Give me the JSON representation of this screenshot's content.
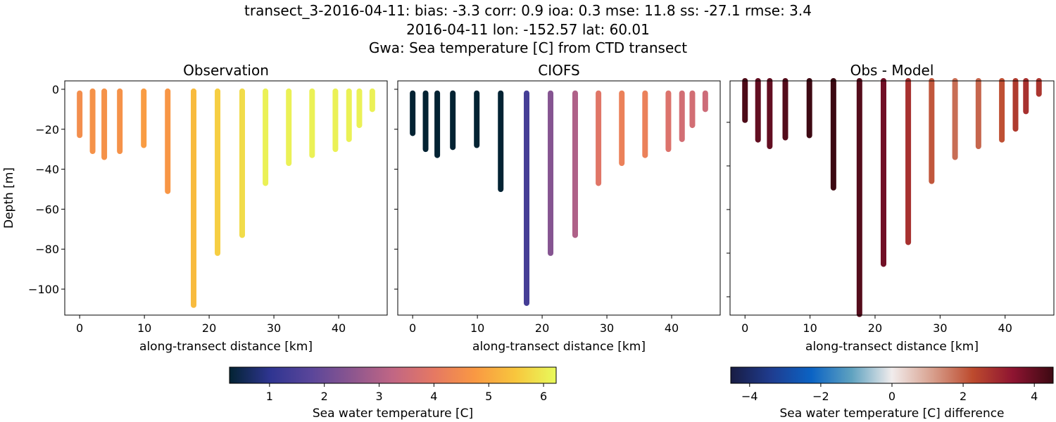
{
  "title_lines": [
    "transect_3-2016-04-11: bias: -3.3  corr: 0.9  ioa: 0.3  mse: 11.8  ss: -27.1  rmse: 3.4",
    "2016-04-11 lon: -152.57 lat: 60.01",
    "Gwa: Sea temperature [C] from CTD transect"
  ],
  "chart_data": [
    {
      "type": "scatter",
      "title": "Observation",
      "xlabel": "along-transect distance [km]",
      "ylabel": "Depth [m]",
      "xlim": [
        -2.3,
        47.5
      ],
      "ylim": [
        -113,
        4.2
      ],
      "xticks": [
        0,
        10,
        20,
        30,
        40
      ],
      "yticks": [
        0,
        -20,
        -40,
        -60,
        -80,
        -100
      ],
      "ytick_labels_shown": true,
      "colormap": "thermal",
      "clim": [
        0.27,
        6.23
      ],
      "stations": [
        {
          "x": 0.0,
          "top": -2,
          "bottom": -23,
          "value": 4.5
        },
        {
          "x": 2.0,
          "top": -1,
          "bottom": -31,
          "value": 4.6
        },
        {
          "x": 3.8,
          "top": -1,
          "bottom": -34,
          "value": 4.6
        },
        {
          "x": 6.2,
          "top": -1,
          "bottom": -31,
          "value": 4.6
        },
        {
          "x": 9.9,
          "top": -1,
          "bottom": -28,
          "value": 4.8
        },
        {
          "x": 13.6,
          "top": -1,
          "bottom": -51,
          "value": 4.7
        },
        {
          "x": 17.6,
          "top": -1,
          "bottom": -108,
          "value": 5.3
        },
        {
          "x": 21.3,
          "top": -1,
          "bottom": -82,
          "value": 5.6
        },
        {
          "x": 25.1,
          "top": -1,
          "bottom": -73,
          "value": 5.8
        },
        {
          "x": 28.7,
          "top": -1,
          "bottom": -47,
          "value": 6.1
        },
        {
          "x": 32.3,
          "top": -1,
          "bottom": -37,
          "value": 6.1
        },
        {
          "x": 35.9,
          "top": -1,
          "bottom": -33,
          "value": 6.1
        },
        {
          "x": 39.5,
          "top": -1,
          "bottom": -30,
          "value": 6.1
        },
        {
          "x": 41.6,
          "top": -1,
          "bottom": -25,
          "value": 6.1
        },
        {
          "x": 43.2,
          "top": -1,
          "bottom": -18,
          "value": 6.1
        },
        {
          "x": 45.2,
          "top": -1,
          "bottom": -10,
          "value": 6.1
        }
      ]
    },
    {
      "type": "scatter",
      "title": "CIOFS",
      "xlabel": "along-transect distance [km]",
      "xlim": [
        -2.3,
        47.5
      ],
      "ylim": [
        -113,
        4.2
      ],
      "xticks": [
        0,
        10,
        20,
        30,
        40
      ],
      "yticks": [
        0,
        -20,
        -40,
        -60,
        -80,
        -100
      ],
      "ytick_labels_shown": false,
      "colormap": "thermal",
      "clim": [
        0.27,
        6.23
      ],
      "stations": [
        {
          "x": 0.0,
          "top": -2,
          "bottom": -22,
          "value": 0.2
        },
        {
          "x": 2.0,
          "top": -2,
          "bottom": -30,
          "value": 0.25
        },
        {
          "x": 3.8,
          "top": -2,
          "bottom": -33,
          "value": 0.25
        },
        {
          "x": 6.2,
          "top": -2,
          "bottom": -29,
          "value": 0.25
        },
        {
          "x": 9.9,
          "top": -2,
          "bottom": -28,
          "value": 0.25
        },
        {
          "x": 13.6,
          "top": -2,
          "bottom": -50,
          "value": 0.2
        },
        {
          "x": 17.6,
          "top": -2,
          "bottom": -107,
          "value": 1.4
        },
        {
          "x": 21.3,
          "top": -2,
          "bottom": -82,
          "value": 2.4
        },
        {
          "x": 25.1,
          "top": -2,
          "bottom": -73,
          "value": 3.0
        },
        {
          "x": 28.7,
          "top": -2,
          "bottom": -47,
          "value": 3.9
        },
        {
          "x": 32.3,
          "top": -2,
          "bottom": -37,
          "value": 4.2
        },
        {
          "x": 35.9,
          "top": -2,
          "bottom": -33,
          "value": 4.2
        },
        {
          "x": 39.5,
          "top": -2,
          "bottom": -30,
          "value": 3.8
        },
        {
          "x": 41.6,
          "top": -2,
          "bottom": -25,
          "value": 3.6
        },
        {
          "x": 43.2,
          "top": -2,
          "bottom": -18,
          "value": 3.6
        },
        {
          "x": 45.2,
          "top": -2,
          "bottom": -10,
          "value": 3.5
        }
      ]
    },
    {
      "type": "scatter",
      "title": "Obs - Model",
      "xlabel": "along-transect distance [km]",
      "xlim": [
        -2.3,
        47.5
      ],
      "ylim": [
        -108.4,
        -1
      ],
      "xticks": [
        0,
        10,
        20,
        30,
        40
      ],
      "yticks": [
        -20,
        -40,
        -60,
        -80,
        -100
      ],
      "ytick_labels_shown": false,
      "colormap": "balance",
      "clim": [
        -4.53,
        4.53
      ],
      "stations": [
        {
          "x": 0.0,
          "top": -1,
          "bottom": -19,
          "value": 4.3
        },
        {
          "x": 2.0,
          "top": -1,
          "bottom": -28,
          "value": 4.0
        },
        {
          "x": 3.8,
          "top": -1,
          "bottom": -31,
          "value": 4.0
        },
        {
          "x": 6.2,
          "top": -1,
          "bottom": -27,
          "value": 4.2
        },
        {
          "x": 9.9,
          "top": -1,
          "bottom": -26,
          "value": 4.5
        },
        {
          "x": 13.6,
          "top": -1,
          "bottom": -50,
          "value": 4.6
        },
        {
          "x": 17.6,
          "top": -1,
          "bottom": -108,
          "value": 4.2
        },
        {
          "x": 21.3,
          "top": -1,
          "bottom": -85,
          "value": 3.8
        },
        {
          "x": 25.1,
          "top": -1,
          "bottom": -75,
          "value": 2.8
        },
        {
          "x": 28.7,
          "top": -1,
          "bottom": -47,
          "value": 2.1
        },
        {
          "x": 32.3,
          "top": -1,
          "bottom": -36,
          "value": 1.8
        },
        {
          "x": 35.9,
          "top": -1,
          "bottom": -31,
          "value": 1.9
        },
        {
          "x": 39.5,
          "top": -1,
          "bottom": -28,
          "value": 2.2
        },
        {
          "x": 41.6,
          "top": -1,
          "bottom": -23,
          "value": 2.6
        },
        {
          "x": 43.2,
          "top": -1,
          "bottom": -15,
          "value": 2.8
        },
        {
          "x": 45.2,
          "top": -1,
          "bottom": -7,
          "value": 2.7
        }
      ]
    }
  ],
  "colorbars": [
    {
      "label": "Sea water temperature [C]",
      "colormap": "thermal",
      "range": [
        0.27,
        6.23
      ],
      "ticks": [
        1,
        2,
        3,
        4,
        5,
        6
      ],
      "tick_labels": [
        "1",
        "2",
        "3",
        "4",
        "5",
        "6"
      ]
    },
    {
      "label": "Sea water temperature [C] difference",
      "colormap": "balance",
      "range": [
        -4.53,
        4.53
      ],
      "ticks": [
        -4,
        -2,
        0,
        2,
        4
      ],
      "tick_labels": [
        "−4",
        "−2",
        "0",
        "2",
        "4"
      ]
    }
  ],
  "colormaps": {
    "thermal": [
      "#032333",
      "#2f3591",
      "#5a469a",
      "#8c568f",
      "#c16684",
      "#e57863",
      "#f99843",
      "#f8c63d",
      "#e8fa5b"
    ],
    "balance": [
      "#181c43",
      "#1f3c8f",
      "#0b63c4",
      "#5fa2c0",
      "#f1ecec",
      "#d8a08e",
      "#bd4b2e",
      "#8e1431",
      "#3c0912"
    ]
  }
}
